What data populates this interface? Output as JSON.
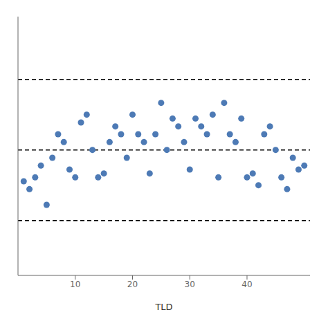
{
  "chart_data": {
    "type": "scatter",
    "x_label": "TLD",
    "x": [
      1,
      2,
      3,
      4,
      5,
      6,
      7,
      8,
      9,
      10,
      11,
      12,
      13,
      14,
      15,
      16,
      17,
      18,
      19,
      20,
      21,
      22,
      23,
      24,
      25,
      26,
      27,
      28,
      29,
      30,
      31,
      32,
      33,
      34,
      35,
      36,
      37,
      38,
      39,
      40,
      41,
      42,
      43,
      44,
      45,
      46,
      47,
      48,
      49,
      50
    ],
    "values": [
      0.97,
      0.96,
      0.975,
      0.99,
      0.94,
      1.0,
      1.03,
      1.02,
      0.985,
      0.975,
      1.045,
      1.055,
      1.01,
      0.975,
      0.98,
      1.02,
      1.04,
      1.03,
      1.0,
      1.055,
      1.03,
      1.02,
      0.98,
      1.03,
      1.07,
      1.01,
      1.05,
      1.04,
      1.02,
      0.985,
      1.05,
      1.04,
      1.03,
      1.055,
      0.975,
      1.07,
      1.03,
      1.02,
      1.05,
      0.975,
      0.98,
      0.965,
      1.03,
      1.04,
      1.01,
      0.975,
      0.96,
      1.0,
      0.985,
      0.99
    ],
    "color": "#4d7ab5",
    "marker": "circle",
    "hlines": [
      {
        "value": 1.01,
        "color": "#000000",
        "line_style": "dashed"
      },
      {
        "value": 1.1,
        "color": "#000000",
        "line_style": "dashed"
      },
      {
        "value": 0.92,
        "color": "#000000",
        "line_style": "dashed"
      }
    ],
    "xlim": [
      0,
      51
    ],
    "ylim": [
      0.85,
      1.18
    ],
    "xticks": [
      10,
      20,
      30,
      40
    ],
    "tick_labels": "x",
    "grid": false
  }
}
